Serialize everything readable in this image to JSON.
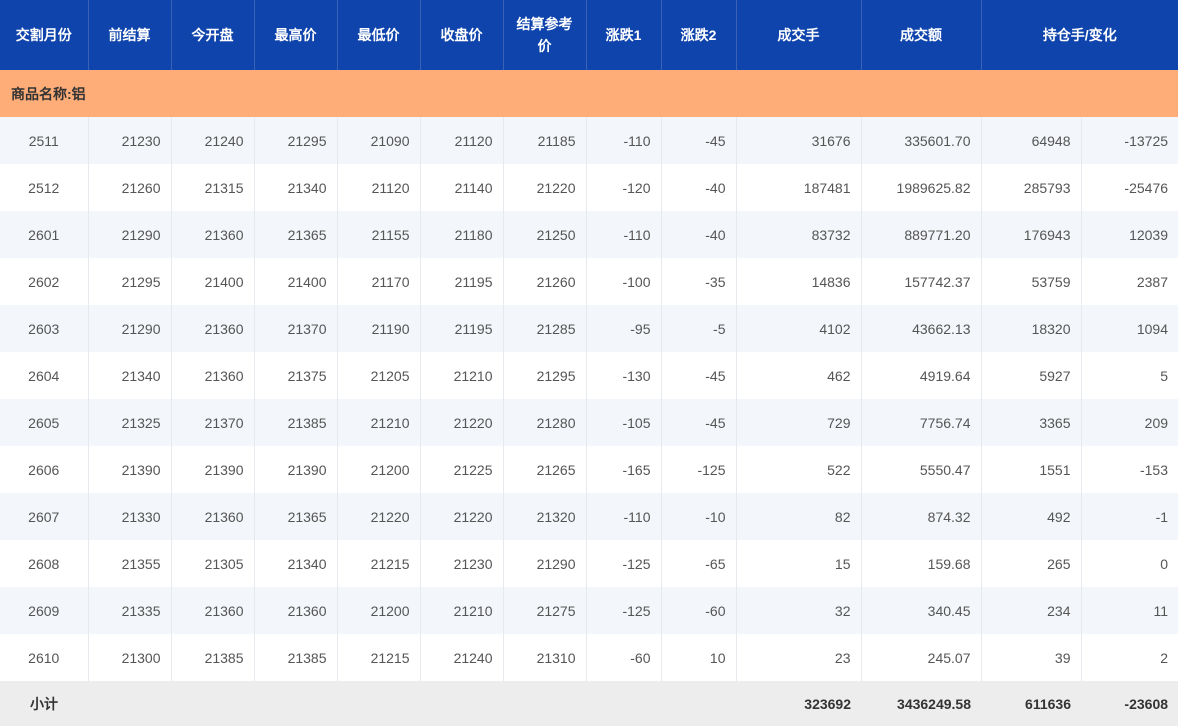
{
  "colors": {
    "header_bg": "#0f44ad",
    "category_bg": "#ffad78",
    "stripe_bg": "#f3f6fa",
    "total_bg": "#ededed"
  },
  "headers": [
    "交割月份",
    "前结算",
    "今开盘",
    "最高价",
    "最低价",
    "收盘价",
    "结算参考价",
    "涨跌1",
    "涨跌2",
    "成交手",
    "成交额",
    "持仓手/变化"
  ],
  "category_label": "商品名称:铝",
  "rows": [
    [
      "2511",
      "21230",
      "21240",
      "21295",
      "21090",
      "21120",
      "21185",
      "-110",
      "-45",
      "31676",
      "335601.70",
      "64948",
      "-13725"
    ],
    [
      "2512",
      "21260",
      "21315",
      "21340",
      "21120",
      "21140",
      "21220",
      "-120",
      "-40",
      "187481",
      "1989625.82",
      "285793",
      "-25476"
    ],
    [
      "2601",
      "21290",
      "21360",
      "21365",
      "21155",
      "21180",
      "21250",
      "-110",
      "-40",
      "83732",
      "889771.20",
      "176943",
      "12039"
    ],
    [
      "2602",
      "21295",
      "21400",
      "21400",
      "21170",
      "21195",
      "21260",
      "-100",
      "-35",
      "14836",
      "157742.37",
      "53759",
      "2387"
    ],
    [
      "2603",
      "21290",
      "21360",
      "21370",
      "21190",
      "21195",
      "21285",
      "-95",
      "-5",
      "4102",
      "43662.13",
      "18320",
      "1094"
    ],
    [
      "2604",
      "21340",
      "21360",
      "21375",
      "21205",
      "21210",
      "21295",
      "-130",
      "-45",
      "462",
      "4919.64",
      "5927",
      "5"
    ],
    [
      "2605",
      "21325",
      "21370",
      "21385",
      "21210",
      "21220",
      "21280",
      "-105",
      "-45",
      "729",
      "7756.74",
      "3365",
      "209"
    ],
    [
      "2606",
      "21390",
      "21390",
      "21390",
      "21200",
      "21225",
      "21265",
      "-165",
      "-125",
      "522",
      "5550.47",
      "1551",
      "-153"
    ],
    [
      "2607",
      "21330",
      "21360",
      "21365",
      "21220",
      "21220",
      "21320",
      "-110",
      "-10",
      "82",
      "874.32",
      "492",
      "-1"
    ],
    [
      "2608",
      "21355",
      "21305",
      "21340",
      "21215",
      "21230",
      "21290",
      "-125",
      "-65",
      "15",
      "159.68",
      "265",
      "0"
    ],
    [
      "2609",
      "21335",
      "21360",
      "21360",
      "21200",
      "21210",
      "21275",
      "-125",
      "-60",
      "32",
      "340.45",
      "234",
      "11"
    ],
    [
      "2610",
      "21300",
      "21385",
      "21385",
      "21215",
      "21240",
      "21310",
      "-60",
      "10",
      "23",
      "245.07",
      "39",
      "2"
    ]
  ],
  "total": {
    "label": "小计",
    "volume": "323692",
    "turnover": "3436249.58",
    "open_interest": "611636",
    "oi_change": "-23608"
  }
}
